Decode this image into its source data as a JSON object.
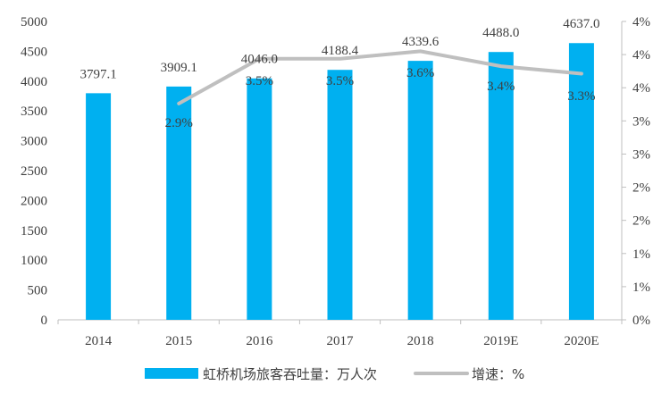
{
  "chart_data": {
    "type": "bar",
    "categories": [
      "2014",
      "2015",
      "2016",
      "2017",
      "2018",
      "2019E",
      "2020E"
    ],
    "series": [
      {
        "name": "虹桥机场旅客吞吐量：万人次",
        "type": "bar",
        "axis": "left",
        "values": [
          3797.1,
          3909.1,
          4046.0,
          4188.4,
          4339.6,
          4488.0,
          4637.0
        ],
        "labels": [
          "3797.1",
          "3909.1",
          "4046.0",
          "4188.4",
          "4339.6",
          "4488.0",
          "4637.0"
        ]
      },
      {
        "name": "增速：%",
        "type": "line",
        "axis": "right",
        "values": [
          null,
          2.9,
          3.5,
          3.5,
          3.6,
          3.4,
          3.3
        ],
        "labels": [
          "",
          "2.9%",
          "3.5%",
          "3.5%",
          "3.6%",
          "3.4%",
          "3.3%"
        ]
      }
    ],
    "y_left": {
      "ylim": [
        0,
        5000
      ],
      "ticks": [
        "0",
        "500",
        "1000",
        "1500",
        "2000",
        "2500",
        "3000",
        "3500",
        "4000",
        "4500",
        "5000"
      ]
    },
    "y_right": {
      "ylim": [
        0,
        4
      ],
      "ticks": [
        "0%",
        "1%",
        "1%",
        "2%",
        "2%",
        "3%",
        "3%",
        "4%",
        "4%",
        "4%"
      ]
    },
    "title": "",
    "xlabel": "",
    "ylabel": "",
    "grid": false,
    "legend": "bottom",
    "colors": {
      "bar": "#00B0F0",
      "line": "#BFBFBF",
      "axis": "#BFBFBF",
      "text": "#404040"
    }
  }
}
